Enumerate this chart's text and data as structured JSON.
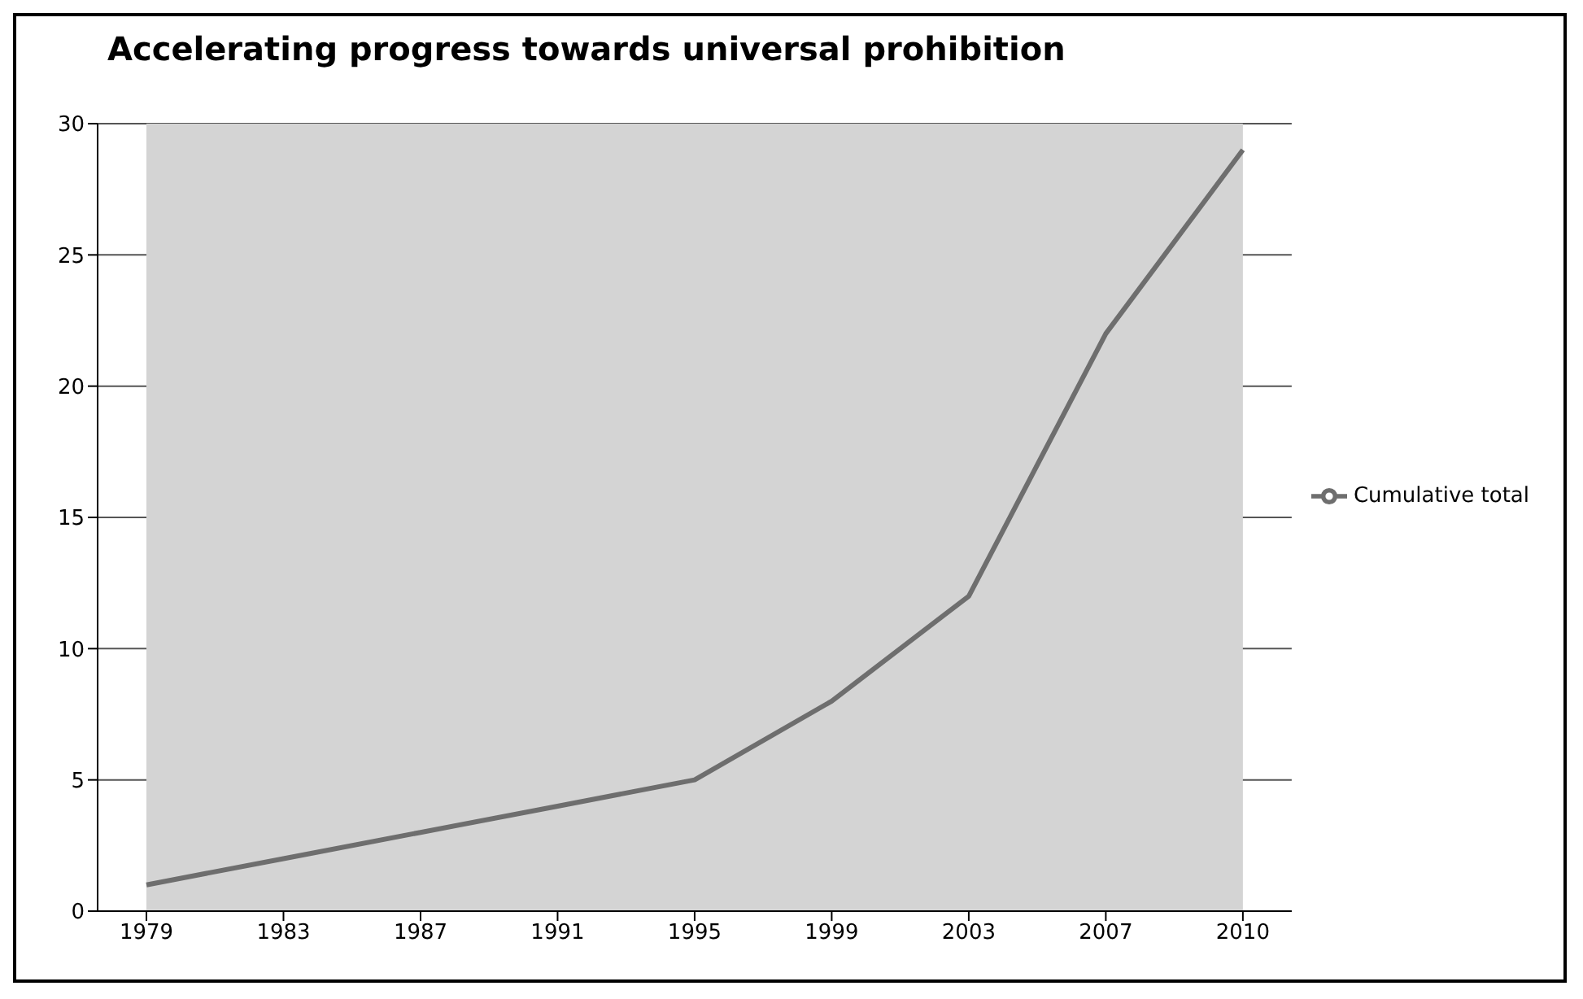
{
  "chart_data": {
    "type": "line",
    "title": "Accelerating progress towards universal prohibition",
    "categories": [
      "1979",
      "1983",
      "1987",
      "1991",
      "1995",
      "1999",
      "2003",
      "2007",
      "2010"
    ],
    "series": [
      {
        "name": "Cumulative total",
        "color": "#6e6e6e",
        "values": [
          1,
          2,
          3,
          4,
          5,
          8,
          12,
          22,
          29
        ]
      }
    ],
    "ylim": [
      0,
      30
    ],
    "yticks": [
      0,
      5,
      10,
      15,
      20,
      25,
      30
    ],
    "grid": "y",
    "legend": "right",
    "marker": "none"
  }
}
